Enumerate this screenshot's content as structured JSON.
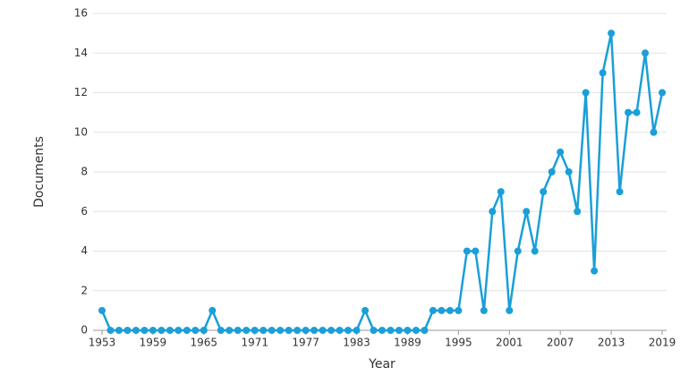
{
  "chart_data": {
    "type": "line",
    "x_label": "Year",
    "y_label": "Documents",
    "x": [
      1953,
      1954,
      1955,
      1956,
      1957,
      1958,
      1959,
      1960,
      1961,
      1962,
      1963,
      1964,
      1965,
      1966,
      1967,
      1968,
      1969,
      1970,
      1971,
      1972,
      1973,
      1974,
      1975,
      1976,
      1977,
      1978,
      1979,
      1980,
      1981,
      1982,
      1983,
      1984,
      1985,
      1986,
      1987,
      1988,
      1989,
      1990,
      1991,
      1992,
      1993,
      1994,
      1995,
      1996,
      1997,
      1998,
      1999,
      2000,
      2001,
      2002,
      2003,
      2004,
      2005,
      2006,
      2007,
      2008,
      2009,
      2010,
      2011,
      2012,
      2013,
      2014,
      2015,
      2016,
      2017,
      2018,
      2019
    ],
    "series": [
      {
        "name": "Documents",
        "color": "#1a9fd8",
        "values": [
          1,
          0,
          0,
          0,
          0,
          0,
          0,
          0,
          0,
          0,
          0,
          0,
          0,
          1,
          0,
          0,
          0,
          0,
          0,
          0,
          0,
          0,
          0,
          0,
          0,
          0,
          0,
          0,
          0,
          0,
          0,
          1,
          0,
          0,
          0,
          0,
          0,
          0,
          0,
          1,
          1,
          1,
          1,
          4,
          4,
          1,
          6,
          7,
          1,
          4,
          6,
          4,
          7,
          8,
          9,
          8,
          6,
          12,
          3,
          13,
          15,
          7,
          11,
          11,
          14,
          10,
          12
        ]
      }
    ],
    "xlim": [
      1953,
      2019
    ],
    "xticks": [
      1953,
      1959,
      1965,
      1971,
      1977,
      1983,
      1989,
      1995,
      2001,
      2007,
      2013,
      2019
    ],
    "ylim": [
      0,
      16
    ],
    "yticks": [
      0,
      2,
      4,
      6,
      8,
      10,
      12,
      14,
      16
    ],
    "grid": true
  }
}
